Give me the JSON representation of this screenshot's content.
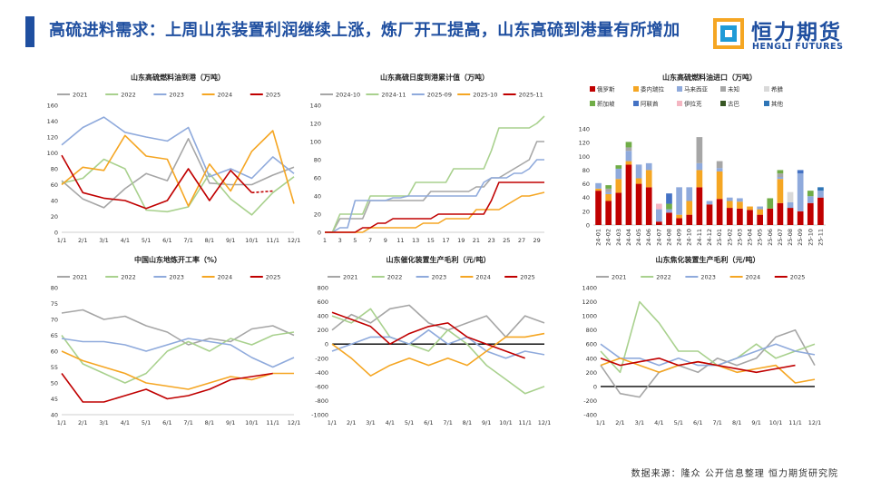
{
  "header": {
    "title": "高硫进料需求：上周山东装置利润继续上涨，炼厂开工提高，山东高硫到港量有所增加",
    "logo_cn": "恒力期货",
    "logo_en": "HENGLI FUTURES"
  },
  "footer": {
    "source": "数据来源：隆众  公开信息整理  恒力期货研究院"
  },
  "colors": {
    "accent": "#1f4fa0",
    "y2021": "#a6a6a6",
    "y2022": "#a9d18e",
    "y2023": "#8faadc",
    "y2024": "#f5a623",
    "y2025": "#c00000"
  },
  "chart_data": [
    {
      "id": "arrivals",
      "type": "line",
      "title": "山东高硫燃料油到港（万吨）",
      "x": [
        "1/1",
        "2/1",
        "3/1",
        "4/1",
        "5/1",
        "6/1",
        "7/1",
        "8/1",
        "9/1",
        "10/1",
        "11/1",
        "12/1"
      ],
      "ylim": [
        0,
        160
      ],
      "yticks": [
        0,
        20,
        40,
        60,
        80,
        100,
        120,
        140,
        160
      ],
      "series": [
        {
          "name": "2021",
          "color": "#a6a6a6",
          "values": [
            65,
            42,
            31,
            55,
            74,
            65,
            118,
            62,
            60,
            60,
            72,
            82
          ]
        },
        {
          "name": "2022",
          "color": "#a9d18e",
          "values": [
            62,
            68,
            92,
            80,
            28,
            26,
            32,
            74,
            42,
            22,
            50,
            70
          ]
        },
        {
          "name": "2023",
          "color": "#8faadc",
          "values": [
            110,
            132,
            145,
            126,
            120,
            115,
            132,
            70,
            80,
            68,
            95,
            74
          ]
        },
        {
          "name": "2024",
          "color": "#f5a623",
          "values": [
            60,
            82,
            78,
            122,
            96,
            92,
            33,
            86,
            52,
            102,
            128,
            36
          ]
        },
        {
          "name": "2025",
          "color": "#c00000",
          "values": [
            97,
            50,
            43,
            40,
            30,
            40,
            80,
            40,
            78,
            50,
            52,
            null
          ],
          "dashedFrom": 9
        }
      ]
    },
    {
      "id": "cumulative",
      "type": "line",
      "title": "山东高硫日度到港累计值（万吨）",
      "x": [
        1,
        2,
        3,
        4,
        5,
        6,
        7,
        8,
        9,
        10,
        11,
        12,
        13,
        14,
        15,
        16,
        17,
        18,
        19,
        20,
        21,
        22,
        23,
        24,
        25,
        26,
        27,
        28,
        29,
        30
      ],
      "xticks": [
        1,
        3,
        5,
        7,
        9,
        11,
        13,
        15,
        17,
        19,
        21,
        23,
        25,
        27,
        29
      ],
      "ylim": [
        0,
        140
      ],
      "yticks": [
        0,
        20,
        40,
        60,
        80,
        100,
        120,
        140
      ],
      "series": [
        {
          "name": "2024-10",
          "color": "#a6a6a6",
          "values": [
            0,
            0,
            15,
            15,
            15,
            15,
            35,
            35,
            35,
            35,
            35,
            35,
            35,
            35,
            45,
            45,
            45,
            45,
            45,
            45,
            50,
            50,
            60,
            60,
            65,
            70,
            75,
            80,
            100,
            100
          ]
        },
        {
          "name": "2024-11",
          "color": "#a9d18e",
          "values": [
            0,
            0,
            20,
            20,
            20,
            20,
            40,
            40,
            40,
            40,
            40,
            40,
            55,
            55,
            55,
            55,
            55,
            70,
            70,
            70,
            70,
            70,
            90,
            115,
            115,
            115,
            115,
            115,
            120,
            128
          ]
        },
        {
          "name": "2025-09",
          "color": "#8faadc",
          "values": [
            0,
            0,
            5,
            5,
            35,
            35,
            35,
            35,
            35,
            38,
            38,
            40,
            40,
            40,
            40,
            40,
            40,
            40,
            40,
            40,
            40,
            55,
            60,
            60,
            60,
            65,
            65,
            70,
            80,
            80
          ]
        },
        {
          "name": "2025-10",
          "color": "#f5a623",
          "values": [
            0,
            0,
            0,
            0,
            0,
            0,
            5,
            5,
            5,
            5,
            5,
            5,
            5,
            10,
            10,
            10,
            15,
            15,
            15,
            15,
            25,
            25,
            25,
            25,
            30,
            35,
            40,
            40,
            42,
            44
          ]
        },
        {
          "name": "2025-11",
          "color": "#c00000",
          "values": [
            0,
            0,
            0,
            0,
            0,
            5,
            5,
            10,
            10,
            15,
            15,
            15,
            15,
            15,
            15,
            20,
            20,
            20,
            20,
            20,
            20,
            20,
            35,
            55,
            55,
            55,
            55,
            55,
            55,
            55
          ]
        }
      ]
    },
    {
      "id": "imports",
      "type": "bar",
      "stacked": true,
      "title": "山东高硫燃料油进口（万吨）",
      "categories": [
        "24-01",
        "24-02",
        "24-03",
        "24-04",
        "24-05",
        "24-06",
        "24-07",
        "24-08",
        "24-09",
        "24-10",
        "24-11",
        "24-12",
        "25-01",
        "25-02",
        "25-03",
        "25-04",
        "25-05",
        "25-06",
        "25-07",
        "25-08",
        "25-09",
        "25-10",
        "25-11"
      ],
      "ylim": [
        0,
        140
      ],
      "yticks": [
        0,
        20,
        40,
        60,
        80,
        100,
        120,
        140
      ],
      "series": [
        {
          "name": "俄罗斯",
          "color": "#c00000",
          "values": [
            50,
            35,
            47,
            88,
            60,
            55,
            5,
            18,
            10,
            15,
            55,
            30,
            38,
            25,
            24,
            22,
            15,
            24,
            32,
            25,
            20,
            32,
            40
          ]
        },
        {
          "name": "委内瑞拉",
          "color": "#f5a623",
          "values": [
            3,
            10,
            20,
            5,
            8,
            25,
            0,
            0,
            5,
            20,
            25,
            0,
            40,
            10,
            10,
            5,
            8,
            0,
            35,
            0,
            0,
            0,
            0
          ]
        },
        {
          "name": "马来西亚",
          "color": "#8faadc",
          "values": [
            8,
            3,
            15,
            15,
            20,
            10,
            18,
            5,
            40,
            20,
            10,
            5,
            5,
            5,
            5,
            0,
            4,
            0,
            3,
            8,
            55,
            10,
            10
          ]
        },
        {
          "name": "未知",
          "color": "#a6a6a6",
          "values": [
            0,
            5,
            0,
            5,
            0,
            0,
            0,
            0,
            0,
            0,
            38,
            0,
            10,
            0,
            0,
            0,
            0,
            0,
            5,
            0,
            0,
            0,
            0
          ]
        },
        {
          "name": "希腊",
          "color": "#d9d9d9",
          "values": [
            0,
            0,
            0,
            0,
            0,
            0,
            0,
            0,
            0,
            0,
            0,
            0,
            0,
            0,
            0,
            0,
            0,
            0,
            0,
            15,
            0,
            0,
            0
          ]
        },
        {
          "name": "新加坡",
          "color": "#70ad47",
          "values": [
            0,
            5,
            5,
            8,
            0,
            0,
            0,
            8,
            0,
            0,
            0,
            0,
            0,
            0,
            0,
            0,
            0,
            15,
            5,
            0,
            0,
            8,
            0
          ]
        },
        {
          "name": "阿联酋",
          "color": "#4472c4",
          "values": [
            0,
            0,
            0,
            0,
            0,
            0,
            0,
            15,
            0,
            0,
            0,
            0,
            0,
            0,
            0,
            0,
            0,
            0,
            0,
            0,
            5,
            0,
            0
          ]
        },
        {
          "name": "伊拉克",
          "color": "#f4b6c2",
          "values": [
            0,
            0,
            0,
            0,
            0,
            0,
            8,
            0,
            0,
            0,
            0,
            0,
            0,
            0,
            0,
            0,
            0,
            0,
            0,
            0,
            0,
            0,
            0
          ]
        },
        {
          "name": "古巴",
          "color": "#375623",
          "values": [
            0,
            0,
            0,
            0,
            0,
            0,
            0,
            0,
            0,
            0,
            0,
            0,
            0,
            0,
            0,
            0,
            0,
            0,
            0,
            0,
            0,
            0,
            0
          ]
        },
        {
          "name": "其他",
          "color": "#2e75b6",
          "values": [
            0,
            0,
            0,
            0,
            0,
            0,
            0,
            0,
            0,
            0,
            0,
            0,
            0,
            0,
            0,
            0,
            0,
            0,
            0,
            0,
            0,
            0,
            5
          ]
        }
      ]
    },
    {
      "id": "run_rate",
      "type": "line",
      "title": "中国山东地炼开工率（%）",
      "x": [
        "1/1",
        "2/1",
        "3/1",
        "4/1",
        "5/1",
        "6/1",
        "7/1",
        "8/1",
        "9/1",
        "10/1",
        "11/1",
        "12/1"
      ],
      "ylim": [
        40,
        80
      ],
      "yticks": [
        40,
        45,
        50,
        55,
        60,
        65,
        70,
        75,
        80
      ],
      "series": [
        {
          "name": "2021",
          "color": "#a6a6a6",
          "values": [
            72,
            73,
            70,
            71,
            68,
            66,
            62,
            64,
            63,
            67,
            68,
            65
          ]
        },
        {
          "name": "2022",
          "color": "#a9d18e",
          "values": [
            65,
            56,
            53,
            50,
            53,
            60,
            63,
            60,
            64,
            62,
            65,
            66
          ]
        },
        {
          "name": "2023",
          "color": "#8faadc",
          "values": [
            64,
            63,
            63,
            62,
            60,
            62,
            64,
            63,
            62,
            58,
            55,
            58
          ]
        },
        {
          "name": "2024",
          "color": "#f5a623",
          "values": [
            60,
            57,
            55,
            53,
            50,
            49,
            48,
            50,
            52,
            51,
            53,
            53
          ]
        },
        {
          "name": "2025",
          "color": "#c00000",
          "values": [
            53,
            44,
            44,
            46,
            48,
            45,
            46,
            48,
            51,
            52,
            53,
            null
          ]
        }
      ]
    },
    {
      "id": "fcc_margin",
      "type": "line",
      "title": "山东催化装置生产毛利（元/吨）",
      "x": [
        "1/1",
        "2/1",
        "3/1",
        "4/1",
        "5/1",
        "6/1",
        "7/1",
        "8/1",
        "9/1",
        "10/1",
        "11/1",
        "12/1"
      ],
      "ylim": [
        -1000,
        800
      ],
      "yticks": [
        -1000,
        -800,
        -600,
        -400,
        -200,
        0,
        200,
        400,
        600,
        800
      ],
      "series": [
        {
          "name": "2021",
          "color": "#a6a6a6",
          "values": [
            200,
            420,
            300,
            500,
            550,
            300,
            200,
            300,
            400,
            100,
            400,
            300
          ]
        },
        {
          "name": "2022",
          "color": "#a9d18e",
          "values": [
            400,
            300,
            500,
            100,
            0,
            -100,
            200,
            0,
            -300,
            -500,
            -700,
            -600
          ]
        },
        {
          "name": "2023",
          "color": "#8faadc",
          "values": [
            -100,
            0,
            100,
            100,
            0,
            200,
            0,
            100,
            -100,
            -200,
            -100,
            -150
          ]
        },
        {
          "name": "2024",
          "color": "#f5a623",
          "values": [
            0,
            -200,
            -450,
            -300,
            -200,
            -300,
            -200,
            -300,
            -100,
            100,
            100,
            150
          ]
        },
        {
          "name": "2025",
          "color": "#c00000",
          "values": [
            450,
            350,
            250,
            0,
            150,
            250,
            300,
            100,
            0,
            -100,
            -200,
            null
          ]
        }
      ]
    },
    {
      "id": "coking_margin",
      "type": "line",
      "title": "山东焦化装置生产毛利（元/吨）",
      "x": [
        "1/1",
        "2/1",
        "3/1",
        "4/1",
        "5/1",
        "6/1",
        "7/1",
        "8/1",
        "9/1",
        "10/1",
        "11/1",
        "12/1"
      ],
      "ylim": [
        -400,
        1400
      ],
      "yticks": [
        -400,
        -200,
        0,
        200,
        400,
        600,
        800,
        1000,
        1200,
        1400
      ],
      "series": [
        {
          "name": "2021",
          "color": "#a6a6a6",
          "values": [
            300,
            -100,
            -150,
            200,
            300,
            200,
            400,
            300,
            400,
            700,
            800,
            300
          ]
        },
        {
          "name": "2022",
          "color": "#a9d18e",
          "values": [
            500,
            200,
            1200,
            900,
            500,
            500,
            300,
            400,
            600,
            400,
            500,
            600
          ]
        },
        {
          "name": "2023",
          "color": "#8faadc",
          "values": [
            600,
            400,
            400,
            300,
            400,
            300,
            300,
            400,
            500,
            600,
            500,
            450
          ]
        },
        {
          "name": "2024",
          "color": "#f5a623",
          "values": [
            300,
            400,
            300,
            200,
            300,
            350,
            300,
            200,
            250,
            300,
            50,
            100
          ]
        },
        {
          "name": "2025",
          "color": "#c00000",
          "values": [
            400,
            300,
            350,
            400,
            300,
            350,
            300,
            250,
            200,
            250,
            300,
            null
          ]
        }
      ]
    }
  ]
}
